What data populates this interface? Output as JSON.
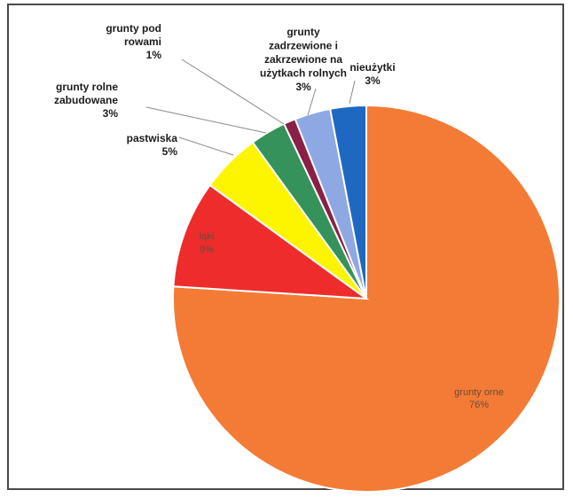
{
  "chart_data": {
    "type": "pie",
    "start_position": "12 o'clock, clockwise",
    "slices": [
      {
        "label_lines": [
          "grunty orne"
        ],
        "value": 76,
        "value_text": "76%",
        "color": "#f47b35",
        "label_style": "inside"
      },
      {
        "label_lines": [
          "łąki"
        ],
        "value": 9,
        "value_text": "9%",
        "color": "#ee2c2c",
        "label_style": "inside"
      },
      {
        "label_lines": [
          "pastwiska"
        ],
        "value": 5,
        "value_text": "5%",
        "color": "#fdf500",
        "label_style": "outside"
      },
      {
        "label_lines": [
          "grunty rolne",
          "zabudowane"
        ],
        "value": 3,
        "value_text": "3%",
        "color": "#34925a",
        "label_style": "outside"
      },
      {
        "label_lines": [
          "grunty pod",
          "rowami"
        ],
        "value": 1,
        "value_text": "1%",
        "color": "#8a2047",
        "label_style": "outside"
      },
      {
        "label_lines": [
          "grunty",
          "zadrzewione i",
          "zakrzewione na",
          "użytkach rolnych"
        ],
        "value": 3,
        "value_text": "3%",
        "color": "#8ea8e4",
        "label_style": "outside"
      },
      {
        "label_lines": [
          "nieużytki"
        ],
        "value": 3,
        "value_text": "3%",
        "color": "#1f68c2",
        "label_style": "outside"
      }
    ],
    "title": "",
    "legend": "none"
  }
}
